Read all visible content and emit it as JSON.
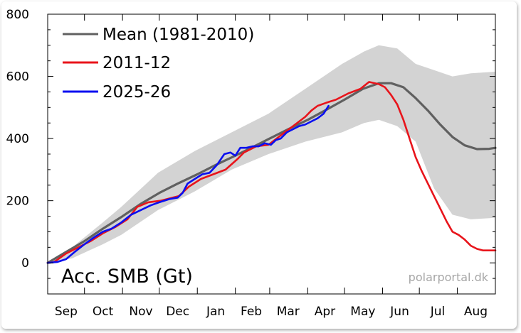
{
  "chart_data": {
    "type": "line",
    "title": "Acc. SMB (Gt)",
    "credit": "polarportal.dk",
    "xlabel": "",
    "ylabel": "",
    "x_unit": "days since 1 Sep",
    "xlim": [
      0,
      365
    ],
    "ylim": [
      -100,
      800
    ],
    "y_ticks": [
      0,
      200,
      400,
      600,
      800
    ],
    "x_tick_labels": [
      {
        "label": "Sep",
        "day": 15
      },
      {
        "label": "Oct",
        "day": 45
      },
      {
        "label": "Nov",
        "day": 76
      },
      {
        "label": "Dec",
        "day": 106
      },
      {
        "label": "Jan",
        "day": 137
      },
      {
        "label": "Feb",
        "day": 166
      },
      {
        "label": "Mar",
        "day": 196
      },
      {
        "label": "Apr",
        "day": 226
      },
      {
        "label": "May",
        "day": 257
      },
      {
        "label": "Jun",
        "day": 287
      },
      {
        "label": "Jul",
        "day": 318
      },
      {
        "label": "Aug",
        "day": 349
      }
    ],
    "month_boundaries": [
      30,
      61,
      91,
      122,
      153,
      181,
      212,
      242,
      273,
      303,
      334
    ],
    "legend_position": "top-left",
    "grid": false,
    "band": {
      "name": "",
      "color": "#d3d3d3",
      "x": [
        0,
        20,
        45,
        60,
        90,
        120,
        150,
        180,
        210,
        240,
        258,
        270,
        285,
        300,
        315,
        330,
        345,
        365
      ],
      "upper": [
        0,
        50,
        130,
        180,
        290,
        360,
        420,
        480,
        560,
        640,
        680,
        700,
        690,
        640,
        620,
        600,
        610,
        615
      ],
      "lower": [
        0,
        15,
        60,
        90,
        170,
        230,
        300,
        350,
        390,
        420,
        450,
        460,
        440,
        390,
        240,
        155,
        140,
        145
      ]
    },
    "series": [
      {
        "name": "Mean (1981-2010)",
        "color": "#606060",
        "x": [
          0,
          15,
          30,
          45,
          61,
          76,
          91,
          106,
          122,
          137,
          153,
          166,
          181,
          196,
          212,
          226,
          242,
          257,
          270,
          280,
          290,
          300,
          310,
          320,
          330,
          340,
          350,
          360,
          365
        ],
        "y": [
          0,
          35,
          70,
          110,
          150,
          190,
          225,
          255,
          285,
          315,
          345,
          370,
          400,
          430,
          460,
          490,
          525,
          560,
          578,
          578,
          565,
          530,
          490,
          445,
          405,
          378,
          366,
          367,
          370
        ]
      },
      {
        "name": "2011-12",
        "color": "#e8141b",
        "x": [
          0,
          5,
          15,
          25,
          35,
          45,
          55,
          65,
          73,
          82,
          92,
          102,
          107,
          115,
          125,
          135,
          145,
          155,
          160,
          170,
          180,
          185,
          190,
          200,
          210,
          215,
          220,
          227,
          235,
          245,
          255,
          262,
          270,
          275,
          280,
          285,
          290,
          295,
          300,
          305,
          310,
          315,
          320,
          325,
          330,
          335,
          340,
          345,
          350,
          355,
          360,
          365
        ],
        "y": [
          0,
          2,
          30,
          50,
          70,
          95,
          115,
          140,
          180,
          195,
          200,
          210,
          215,
          245,
          270,
          285,
          300,
          335,
          355,
          375,
          380,
          395,
          410,
          440,
          470,
          490,
          505,
          515,
          525,
          545,
          560,
          582,
          575,
          565,
          540,
          510,
          460,
          400,
          340,
          295,
          255,
          215,
          175,
          135,
          100,
          90,
          75,
          55,
          45,
          40,
          40,
          40
        ]
      },
      {
        "name": "2025-26",
        "color": "#0a0ff0",
        "x": [
          0,
          8,
          15,
          22,
          30,
          37,
          45,
          52,
          60,
          68,
          76,
          84,
          91,
          99,
          106,
          110,
          114,
          120,
          126,
          132,
          138,
          144,
          149,
          153,
          157,
          162,
          167,
          172,
          177,
          182,
          186,
          190,
          195,
          200,
          205,
          210,
          215,
          220,
          225,
          229
        ],
        "y": [
          0,
          3,
          12,
          35,
          60,
          80,
          100,
          110,
          130,
          155,
          170,
          185,
          195,
          205,
          210,
          225,
          255,
          270,
          285,
          290,
          315,
          350,
          355,
          345,
          370,
          370,
          375,
          375,
          385,
          380,
          395,
          400,
          420,
          430,
          440,
          445,
          455,
          465,
          480,
          505
        ]
      }
    ]
  }
}
